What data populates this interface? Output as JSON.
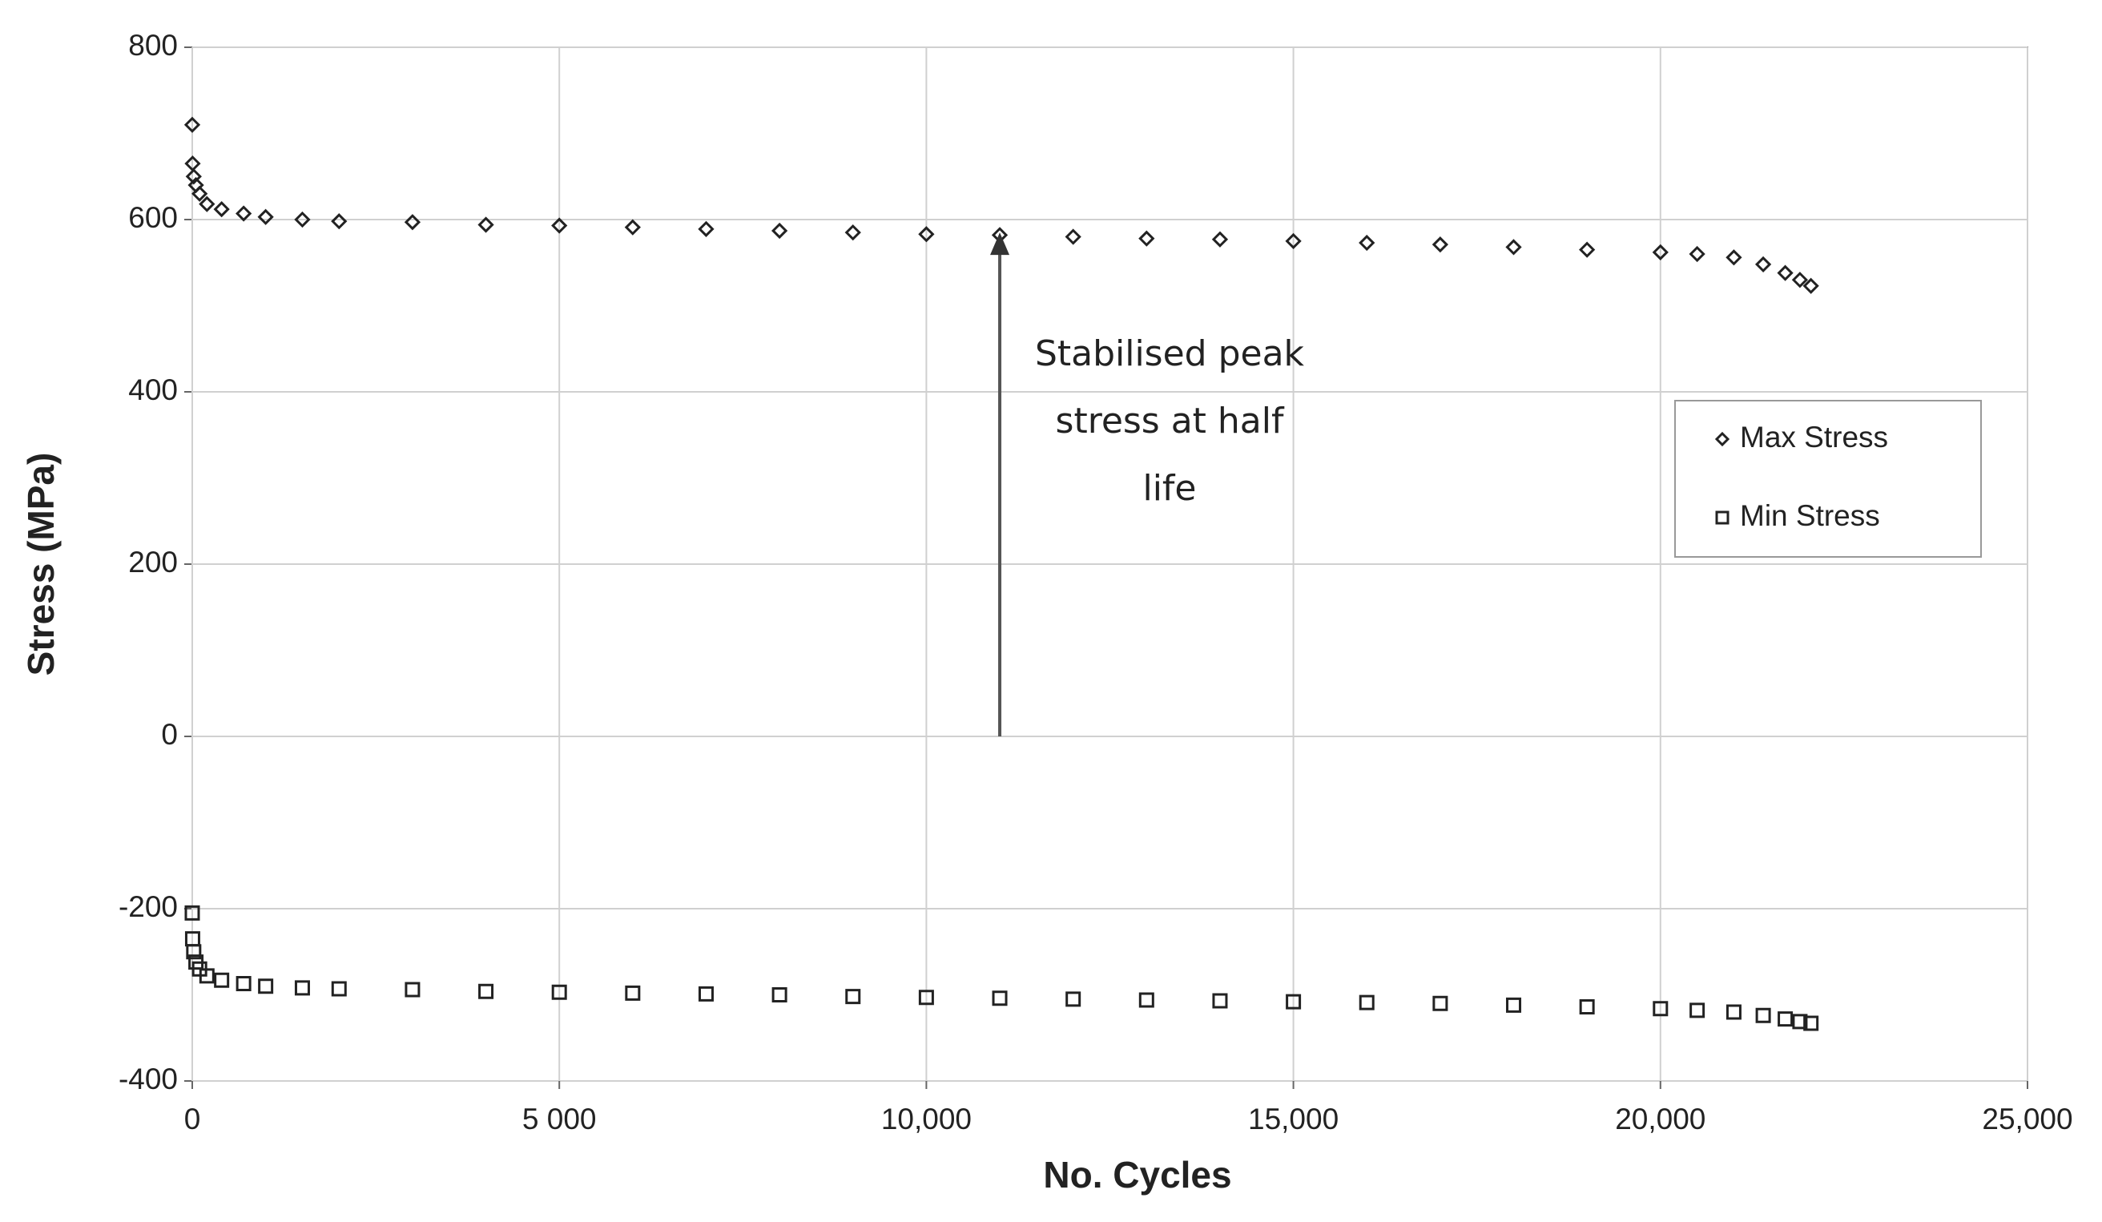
{
  "chart_data": {
    "type": "scatter",
    "xlabel": "No. Cycles",
    "ylabel": "Stress (MPa)",
    "x": [
      0,
      5,
      20,
      50,
      100,
      200,
      400,
      700,
      1000,
      1500,
      2000,
      3000,
      4000,
      5000,
      6000,
      7000,
      8000,
      9000,
      10000,
      11000,
      12000,
      13000,
      14000,
      15000,
      16000,
      17000,
      18000,
      19000,
      20000,
      20500,
      21000,
      21400,
      21700,
      21900,
      22050
    ],
    "series": [
      {
        "name": "Max Stress",
        "color": "#222222",
        "marker": "diamond",
        "values": [
          710,
          665,
          650,
          640,
          630,
          618,
          612,
          607,
          603,
          600,
          598,
          597,
          594,
          593,
          591,
          589,
          587,
          585,
          583,
          582,
          580,
          578,
          577,
          575,
          573,
          571,
          568,
          565,
          562,
          560,
          556,
          548,
          538,
          530,
          523
        ]
      },
      {
        "name": "Min Stress",
        "color": "#222222",
        "marker": "square",
        "values": [
          -205,
          -235,
          -250,
          -262,
          -270,
          -278,
          -283,
          -287,
          -290,
          -292,
          -293,
          -294,
          -296,
          -297,
          -298,
          -299,
          -300,
          -302,
          -303,
          -304,
          -305,
          -306,
          -307,
          -308,
          -309,
          -310,
          -312,
          -314,
          -316,
          -318,
          -320,
          -324,
          -328,
          -331,
          -333
        ]
      }
    ],
    "xlim": [
      0,
      25000
    ],
    "xticks": [
      0,
      {
        "value": 5000,
        "label": "5 000"
      },
      {
        "value": 10000,
        "label": "10,000"
      },
      {
        "value": 15000,
        "label": "15,000"
      },
      {
        "value": 20000,
        "label": "20,000"
      },
      {
        "value": 25000,
        "label": "25,000"
      }
    ],
    "ylim": [
      -400,
      800
    ],
    "yticks": [
      -400,
      -200,
      0,
      200,
      400,
      600,
      800
    ],
    "grid": true,
    "legend": "right",
    "annotation": {
      "lines": [
        "Stabilised peak",
        "stress at half",
        "life"
      ],
      "arrow_x": 11000,
      "arrow_from": 0,
      "arrow_to": 585
    }
  }
}
